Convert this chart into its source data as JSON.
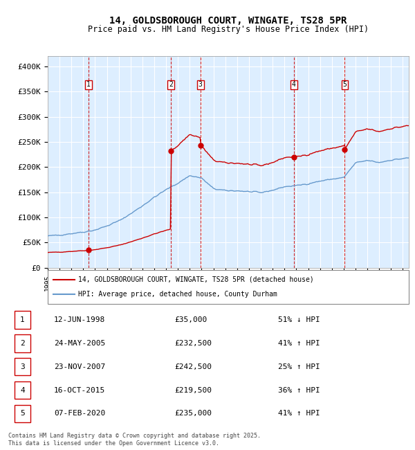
{
  "title_line1": "14, GOLDSBOROUGH COURT, WINGATE, TS28 5PR",
  "title_line2": "Price paid vs. HM Land Registry's House Price Index (HPI)",
  "background_color": "#ddeeff",
  "grid_color": "#ffffff",
  "red_line_color": "#cc0000",
  "blue_line_color": "#6699cc",
  "vline_color": "#cc0000",
  "ylim": [
    0,
    420000
  ],
  "yticks": [
    0,
    50000,
    100000,
    150000,
    200000,
    250000,
    300000,
    350000,
    400000
  ],
  "ytick_labels": [
    "£0",
    "£50K",
    "£100K",
    "£150K",
    "£200K",
    "£250K",
    "£300K",
    "£350K",
    "£400K"
  ],
  "sale_dates_num": [
    1998.44,
    2005.39,
    2007.9,
    2015.79,
    2020.09
  ],
  "sale_prices": [
    35000,
    232500,
    242500,
    219500,
    235000
  ],
  "sale_labels": [
    "1",
    "2",
    "3",
    "4",
    "5"
  ],
  "table_rows": [
    [
      "1",
      "12-JUN-1998",
      "£35,000",
      "51% ↓ HPI"
    ],
    [
      "2",
      "24-MAY-2005",
      "£232,500",
      "41% ↑ HPI"
    ],
    [
      "3",
      "23-NOV-2007",
      "£242,500",
      "25% ↑ HPI"
    ],
    [
      "4",
      "16-OCT-2015",
      "£219,500",
      "36% ↑ HPI"
    ],
    [
      "5",
      "07-FEB-2020",
      "£235,000",
      "41% ↑ HPI"
    ]
  ],
  "legend_entries": [
    "14, GOLDSBOROUGH COURT, WINGATE, TS28 5PR (detached house)",
    "HPI: Average price, detached house, County Durham"
  ],
  "footnote": "Contains HM Land Registry data © Crown copyright and database right 2025.\nThis data is licensed under the Open Government Licence v3.0.",
  "xmin": 1995.0,
  "xmax": 2025.5,
  "hpi_anchors_x": [
    1995,
    1996,
    1997,
    1998,
    1999,
    2000,
    2001,
    2002,
    2003,
    2004,
    2005,
    2006,
    2007,
    2008,
    2009,
    2010,
    2011,
    2012,
    2013,
    2014,
    2015,
    2016,
    2017,
    2018,
    2019,
    2020,
    2021,
    2022,
    2023,
    2024,
    2025.5
  ],
  "hpi_anchors_y": [
    63000,
    65000,
    68000,
    71000,
    75000,
    83000,
    93000,
    107000,
    123000,
    140000,
    155000,
    168000,
    183000,
    178000,
    157000,
    153000,
    153000,
    151000,
    149000,
    154000,
    161000,
    163000,
    167000,
    172000,
    176000,
    179000,
    208000,
    213000,
    209000,
    214000,
    218000
  ]
}
